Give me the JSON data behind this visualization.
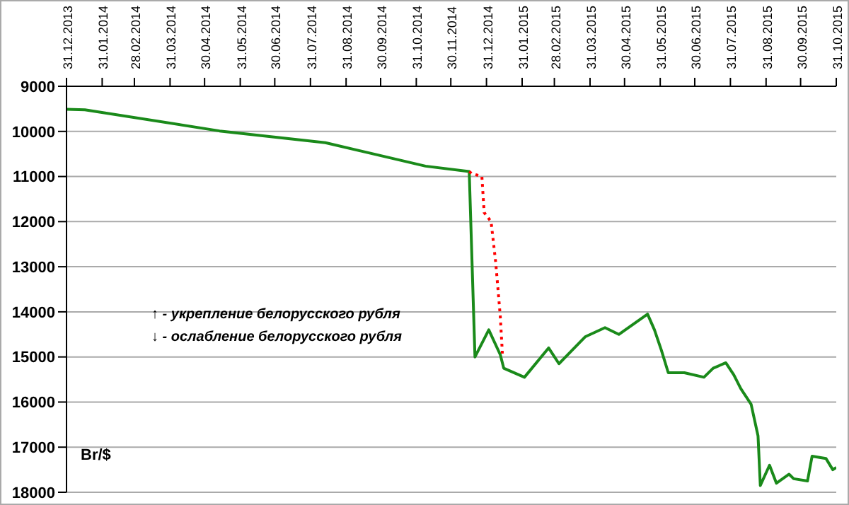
{
  "chart_data": {
    "type": "line",
    "ylabel": "Br/$",
    "annotations": [
      "↑ - укрепление белорусского рубля",
      "↓ - ослабление белорусского рубля"
    ],
    "xlim": [
      "2013-12-31",
      "2015-10-31"
    ],
    "xticks": [
      {
        "value": "2013-12-31",
        "label": "31.12.2013"
      },
      {
        "value": "2014-01-31",
        "label": "31.01.2014"
      },
      {
        "value": "2014-02-28",
        "label": "28.02.2014"
      },
      {
        "value": "2014-03-31",
        "label": "31.03.2014"
      },
      {
        "value": "2014-04-30",
        "label": "30.04.2014"
      },
      {
        "value": "2014-05-31",
        "label": "31.05.2014"
      },
      {
        "value": "2014-06-30",
        "label": "30.06.2014"
      },
      {
        "value": "2014-07-31",
        "label": "31.07.2014"
      },
      {
        "value": "2014-08-31",
        "label": "31.08.2014"
      },
      {
        "value": "2014-09-30",
        "label": "30.09.2014"
      },
      {
        "value": "2014-10-31",
        "label": "31.10.2014"
      },
      {
        "value": "2014-11-30",
        "label": "30.11.2014"
      },
      {
        "value": "2014-12-31",
        "label": "31.12.2014"
      },
      {
        "value": "2015-01-31",
        "label": "31.01.2015"
      },
      {
        "value": "2015-02-28",
        "label": "28.02.2015"
      },
      {
        "value": "2015-03-31",
        "label": "31.03.2015"
      },
      {
        "value": "2015-04-30",
        "label": "30.04.2015"
      },
      {
        "value": "2015-05-31",
        "label": "31.05.2015"
      },
      {
        "value": "2015-06-30",
        "label": "30.06.2015"
      },
      {
        "value": "2015-07-31",
        "label": "31.07.2015"
      },
      {
        "value": "2015-08-31",
        "label": "31.08.2015"
      },
      {
        "value": "2015-09-30",
        "label": "30.09.2015"
      },
      {
        "value": "2015-10-31",
        "label": "31.10.2015"
      }
    ],
    "ylim": [
      18000,
      9000
    ],
    "yticks": [
      9000,
      10000,
      11000,
      12000,
      13000,
      14000,
      15000,
      16000,
      17000,
      18000
    ],
    "grid": "y",
    "marker": "none",
    "series": [
      {
        "color": "#1a8a1a",
        "line_style": "solid",
        "x": [
          "2013-12-31",
          "2014-01-16",
          "2014-05-13",
          "2014-08-13",
          "2014-11-08",
          "2014-12-16",
          "2014-12-21",
          "2015-01-02",
          "2015-01-12",
          "2015-01-15",
          "2015-02-02",
          "2015-02-23",
          "2015-03-04",
          "2015-03-27",
          "2015-04-13",
          "2015-04-25",
          "2015-05-20",
          "2015-05-26",
          "2015-06-01",
          "2015-06-07",
          "2015-06-21",
          "2015-07-08",
          "2015-07-16",
          "2015-07-27",
          "2015-08-03",
          "2015-08-09",
          "2015-08-18",
          "2015-08-24",
          "2015-08-26",
          "2015-09-03",
          "2015-09-09",
          "2015-09-20",
          "2015-09-24",
          "2015-10-06",
          "2015-10-10",
          "2015-10-22",
          "2015-10-28",
          "2015-10-31"
        ],
        "values": [
          9510,
          9520,
          9990,
          10250,
          10770,
          10890,
          15000,
          14400,
          14950,
          15250,
          15450,
          14800,
          15150,
          14550,
          14350,
          14500,
          14050,
          14400,
          14850,
          15350,
          15350,
          15450,
          15250,
          15130,
          15400,
          15700,
          16050,
          16750,
          17850,
          17400,
          17800,
          17600,
          17700,
          17750,
          17200,
          17250,
          17500,
          17450
        ]
      },
      {
        "color": "#ff0000",
        "line_style": "dotted",
        "x": [
          "2014-12-16",
          "2014-12-18",
          "2014-12-27",
          "2014-12-29",
          "2015-01-04",
          "2015-01-08",
          "2015-01-12",
          "2015-01-14"
        ],
        "values": [
          10890,
          10930,
          11000,
          11800,
          12000,
          12900,
          14100,
          15000
        ]
      }
    ]
  }
}
